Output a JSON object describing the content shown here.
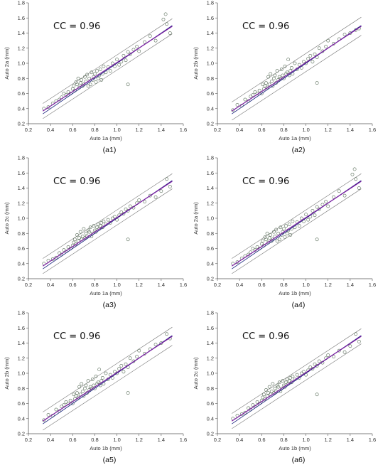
{
  "chart_data": [
    {
      "type": "scatter",
      "xlabel": "Auto 1a (mm)",
      "ylabel": "Auto 2a (mm)",
      "cc_label": "CC = 0.96",
      "caption": "(a1)",
      "xlim": [
        0.2,
        1.6
      ],
      "ylim": [
        0.2,
        1.8
      ],
      "xticks": [
        "0.2",
        "0.4",
        "0.6",
        "0.8",
        "1.0",
        "1.2",
        "1.4",
        "1.6"
      ],
      "yticks": [
        "0.2",
        "0.4",
        "0.6",
        "0.8",
        "1.0",
        "1.2",
        "1.4",
        "1.6",
        "1.8"
      ],
      "fit": {
        "slope": 0.96,
        "intercept": 0.05,
        "band": 0.1
      },
      "series": [
        {
          "x": [
            0.34,
            0.38,
            0.42,
            0.45,
            0.48,
            0.5,
            0.52,
            0.54,
            0.56,
            0.58,
            0.6,
            0.61,
            0.62,
            0.63,
            0.64,
            0.65,
            0.66,
            0.67,
            0.68,
            0.69,
            0.7,
            0.71,
            0.72,
            0.73,
            0.74,
            0.75,
            0.76,
            0.77,
            0.78,
            0.79,
            0.8,
            0.81,
            0.82,
            0.83,
            0.84,
            0.85,
            0.86,
            0.87,
            0.88,
            0.9,
            0.92,
            0.94,
            0.96,
            0.98,
            1.0,
            1.02,
            1.04,
            1.06,
            1.08,
            1.1,
            1.12,
            1.15,
            1.18,
            1.2,
            1.25,
            1.3,
            1.35,
            1.42,
            1.44,
            1.45,
            1.48,
            1.1
          ],
          "y": [
            0.4,
            0.42,
            0.47,
            0.5,
            0.52,
            0.55,
            0.6,
            0.58,
            0.62,
            0.6,
            0.66,
            0.7,
            0.64,
            0.75,
            0.72,
            0.8,
            0.68,
            0.74,
            0.78,
            0.7,
            0.72,
            0.82,
            0.76,
            0.85,
            0.7,
            0.8,
            0.72,
            0.88,
            0.78,
            0.82,
            0.86,
            0.75,
            0.9,
            0.8,
            0.84,
            0.92,
            0.78,
            0.86,
            0.96,
            0.88,
            0.95,
            0.9,
            1.0,
            0.96,
            1.05,
            0.98,
            1.02,
            1.1,
            1.04,
            1.15,
            1.12,
            1.18,
            1.22,
            1.16,
            1.28,
            1.36,
            1.3,
            1.58,
            1.65,
            1.52,
            1.4,
            0.72
          ]
        }
      ]
    },
    {
      "type": "scatter",
      "xlabel": "Auto 1a (mm)",
      "ylabel": "Auto 2b (mm)",
      "cc_label": "CC = 0.96",
      "caption": "(a2)",
      "xlim": [
        0.2,
        1.6
      ],
      "ylim": [
        0.2,
        1.8
      ],
      "xticks": [
        "0.2",
        "0.4",
        "0.6",
        "0.8",
        "1.0",
        "1.2",
        "1.4",
        "1.6"
      ],
      "yticks": [
        "0.2",
        "0.4",
        "0.6",
        "0.8",
        "1.0",
        "1.2",
        "1.4",
        "1.6",
        "1.8"
      ],
      "fit": {
        "slope": 0.96,
        "intercept": 0.05,
        "band": 0.12
      },
      "series": [
        {
          "x": [
            0.34,
            0.38,
            0.42,
            0.45,
            0.48,
            0.5,
            0.52,
            0.54,
            0.56,
            0.58,
            0.6,
            0.61,
            0.62,
            0.63,
            0.64,
            0.65,
            0.66,
            0.67,
            0.68,
            0.69,
            0.7,
            0.71,
            0.72,
            0.73,
            0.74,
            0.75,
            0.76,
            0.77,
            0.78,
            0.79,
            0.8,
            0.81,
            0.82,
            0.83,
            0.84,
            0.85,
            0.86,
            0.87,
            0.88,
            0.9,
            0.92,
            0.94,
            0.96,
            0.98,
            1.0,
            1.02,
            1.04,
            1.06,
            1.08,
            1.1,
            1.12,
            1.15,
            1.18,
            1.2,
            1.25,
            1.3,
            1.35,
            1.4,
            1.45,
            1.48,
            1.1
          ],
          "y": [
            0.38,
            0.45,
            0.44,
            0.52,
            0.5,
            0.56,
            0.58,
            0.62,
            0.6,
            0.64,
            0.6,
            0.72,
            0.66,
            0.7,
            0.74,
            0.68,
            0.82,
            0.72,
            0.86,
            0.76,
            0.7,
            0.8,
            0.84,
            0.74,
            0.9,
            0.78,
            0.82,
            0.8,
            0.92,
            0.84,
            0.8,
            0.96,
            0.86,
            0.88,
            1.05,
            0.84,
            0.9,
            0.94,
            0.86,
            1.0,
            0.92,
            0.98,
            0.94,
            1.02,
            1.0,
            1.06,
            1.1,
            1.02,
            1.12,
            1.08,
            1.2,
            1.16,
            1.22,
            1.3,
            1.26,
            1.32,
            1.38,
            1.4,
            1.44,
            1.46,
            0.74
          ]
        }
      ]
    },
    {
      "type": "scatter",
      "xlabel": "Auto 1a (mm)",
      "ylabel": "Auto 2c (mm)",
      "cc_label": "CC = 0.96",
      "caption": "(a3)",
      "xlim": [
        0.2,
        1.6
      ],
      "ylim": [
        0.2,
        1.8
      ],
      "xticks": [
        "0.2",
        "0.4",
        "0.6",
        "0.8",
        "1.0",
        "1.2",
        "1.4",
        "1.6"
      ],
      "yticks": [
        "0.2",
        "0.4",
        "0.6",
        "0.8",
        "1.0",
        "1.2",
        "1.4",
        "1.6",
        "1.8"
      ],
      "fit": {
        "slope": 0.96,
        "intercept": 0.05,
        "band": 0.1
      },
      "series": [
        {
          "x": [
            0.34,
            0.38,
            0.42,
            0.45,
            0.48,
            0.5,
            0.52,
            0.54,
            0.56,
            0.58,
            0.6,
            0.61,
            0.62,
            0.63,
            0.64,
            0.65,
            0.66,
            0.67,
            0.68,
            0.69,
            0.7,
            0.71,
            0.72,
            0.73,
            0.74,
            0.75,
            0.76,
            0.77,
            0.78,
            0.79,
            0.8,
            0.81,
            0.82,
            0.83,
            0.84,
            0.85,
            0.86,
            0.87,
            0.88,
            0.9,
            0.92,
            0.94,
            0.96,
            0.98,
            1.0,
            1.02,
            1.04,
            1.06,
            1.08,
            1.1,
            1.12,
            1.15,
            1.18,
            1.2,
            1.25,
            1.3,
            1.35,
            1.4,
            1.45,
            1.48,
            1.1
          ],
          "y": [
            0.4,
            0.44,
            0.46,
            0.48,
            0.54,
            0.52,
            0.58,
            0.56,
            0.62,
            0.6,
            0.64,
            0.68,
            0.72,
            0.66,
            0.78,
            0.7,
            0.74,
            0.82,
            0.72,
            0.76,
            0.86,
            0.74,
            0.8,
            0.76,
            0.84,
            0.82,
            0.88,
            0.76,
            0.8,
            0.9,
            0.84,
            0.82,
            0.88,
            0.92,
            0.86,
            0.9,
            0.94,
            0.88,
            0.96,
            0.92,
            0.98,
            0.94,
            1.0,
            1.02,
            0.98,
            1.04,
            1.08,
            1.06,
            1.12,
            1.1,
            1.16,
            1.14,
            1.2,
            1.24,
            1.22,
            1.3,
            1.28,
            1.36,
            1.52,
            1.42,
            0.72
          ]
        }
      ]
    },
    {
      "type": "scatter",
      "xlabel": "Auto 1b (mm)",
      "ylabel": "Auto 2a (mm)",
      "cc_label": "CC = 0.96",
      "caption": "(a4)",
      "xlim": [
        0.2,
        1.6
      ],
      "ylim": [
        0.2,
        1.8
      ],
      "xticks": [
        "0.2",
        "0.4",
        "0.6",
        "0.8",
        "1.0",
        "1.2",
        "1.4",
        "1.6"
      ],
      "yticks": [
        "0.2",
        "0.4",
        "0.6",
        "0.8",
        "1.0",
        "1.2",
        "1.4",
        "1.6",
        "1.8"
      ],
      "fit": {
        "slope": 0.96,
        "intercept": 0.05,
        "band": 0.1
      },
      "series": [
        {
          "x": [
            0.34,
            0.38,
            0.42,
            0.45,
            0.48,
            0.5,
            0.52,
            0.54,
            0.56,
            0.58,
            0.6,
            0.61,
            0.62,
            0.63,
            0.64,
            0.65,
            0.66,
            0.67,
            0.68,
            0.69,
            0.7,
            0.71,
            0.72,
            0.73,
            0.74,
            0.75,
            0.76,
            0.77,
            0.78,
            0.79,
            0.8,
            0.81,
            0.82,
            0.83,
            0.84,
            0.85,
            0.86,
            0.87,
            0.88,
            0.9,
            0.92,
            0.94,
            0.96,
            0.98,
            1.0,
            1.02,
            1.04,
            1.06,
            1.08,
            1.1,
            1.12,
            1.15,
            1.18,
            1.2,
            1.25,
            1.3,
            1.35,
            1.42,
            1.44,
            1.45,
            1.48,
            1.1
          ],
          "y": [
            0.4,
            0.42,
            0.47,
            0.5,
            0.52,
            0.55,
            0.6,
            0.58,
            0.62,
            0.6,
            0.66,
            0.7,
            0.64,
            0.75,
            0.72,
            0.8,
            0.68,
            0.74,
            0.78,
            0.7,
            0.72,
            0.82,
            0.76,
            0.85,
            0.7,
            0.8,
            0.72,
            0.88,
            0.78,
            0.82,
            0.86,
            0.75,
            0.9,
            0.8,
            0.84,
            0.92,
            0.78,
            0.86,
            0.96,
            0.88,
            0.95,
            0.9,
            1.0,
            0.96,
            1.05,
            0.98,
            1.02,
            1.1,
            1.04,
            1.15,
            1.12,
            1.18,
            1.22,
            1.16,
            1.28,
            1.36,
            1.3,
            1.58,
            1.65,
            1.52,
            1.4,
            0.72
          ]
        }
      ]
    },
    {
      "type": "scatter",
      "xlabel": "Auto 1b (mm)",
      "ylabel": "Auto 2b (mm)",
      "cc_label": "CC = 0.96",
      "caption": "(a5)",
      "xlim": [
        0.2,
        1.6
      ],
      "ylim": [
        0.2,
        1.8
      ],
      "xticks": [
        "0.2",
        "0.4",
        "0.6",
        "0.8",
        "1.0",
        "1.2",
        "1.4",
        "1.6"
      ],
      "yticks": [
        "0.2",
        "0.4",
        "0.6",
        "0.8",
        "1.0",
        "1.2",
        "1.4",
        "1.6",
        "1.8"
      ],
      "fit": {
        "slope": 0.96,
        "intercept": 0.05,
        "band": 0.12
      },
      "series": [
        {
          "x": [
            0.34,
            0.38,
            0.42,
            0.45,
            0.48,
            0.5,
            0.52,
            0.54,
            0.56,
            0.58,
            0.6,
            0.61,
            0.62,
            0.63,
            0.64,
            0.65,
            0.66,
            0.67,
            0.68,
            0.69,
            0.7,
            0.71,
            0.72,
            0.73,
            0.74,
            0.75,
            0.76,
            0.77,
            0.78,
            0.79,
            0.8,
            0.81,
            0.82,
            0.83,
            0.84,
            0.85,
            0.86,
            0.87,
            0.88,
            0.9,
            0.92,
            0.94,
            0.96,
            0.98,
            1.0,
            1.02,
            1.04,
            1.06,
            1.08,
            1.1,
            1.12,
            1.15,
            1.18,
            1.2,
            1.25,
            1.3,
            1.35,
            1.4,
            1.45,
            1.48,
            1.1
          ],
          "y": [
            0.38,
            0.45,
            0.44,
            0.52,
            0.5,
            0.56,
            0.58,
            0.62,
            0.6,
            0.64,
            0.6,
            0.72,
            0.66,
            0.7,
            0.74,
            0.68,
            0.82,
            0.72,
            0.86,
            0.76,
            0.7,
            0.8,
            0.84,
            0.74,
            0.9,
            0.78,
            0.82,
            0.8,
            0.92,
            0.84,
            0.8,
            0.96,
            0.86,
            0.88,
            1.05,
            0.84,
            0.9,
            0.94,
            0.86,
            1.0,
            0.92,
            0.98,
            0.94,
            1.02,
            1.0,
            1.06,
            1.1,
            1.02,
            1.12,
            1.08,
            1.2,
            1.16,
            1.22,
            1.3,
            1.26,
            1.32,
            1.38,
            1.4,
            1.52,
            1.46,
            0.74
          ]
        }
      ]
    },
    {
      "type": "scatter",
      "xlabel": "Auto 1b (mm)",
      "ylabel": "Auto 2c (mm)",
      "cc_label": "CC = 0.96",
      "caption": "(a6)",
      "xlim": [
        0.2,
        1.6
      ],
      "ylim": [
        0.2,
        1.8
      ],
      "xticks": [
        "0.2",
        "0.4",
        "0.6",
        "0.8",
        "1.0",
        "1.2",
        "1.4",
        "1.6"
      ],
      "yticks": [
        "0.2",
        "0.4",
        "0.6",
        "0.8",
        "1.0",
        "1.2",
        "1.4",
        "1.6",
        "1.8"
      ],
      "fit": {
        "slope": 0.96,
        "intercept": 0.05,
        "band": 0.1
      },
      "series": [
        {
          "x": [
            0.34,
            0.38,
            0.42,
            0.45,
            0.48,
            0.5,
            0.52,
            0.54,
            0.56,
            0.58,
            0.6,
            0.61,
            0.62,
            0.63,
            0.64,
            0.65,
            0.66,
            0.67,
            0.68,
            0.69,
            0.7,
            0.71,
            0.72,
            0.73,
            0.74,
            0.75,
            0.76,
            0.77,
            0.78,
            0.79,
            0.8,
            0.81,
            0.82,
            0.83,
            0.84,
            0.85,
            0.86,
            0.87,
            0.88,
            0.9,
            0.92,
            0.94,
            0.96,
            0.98,
            1.0,
            1.02,
            1.04,
            1.06,
            1.08,
            1.1,
            1.12,
            1.15,
            1.18,
            1.2,
            1.25,
            1.3,
            1.35,
            1.4,
            1.45,
            1.48,
            1.1
          ],
          "y": [
            0.4,
            0.44,
            0.46,
            0.48,
            0.54,
            0.52,
            0.58,
            0.56,
            0.62,
            0.6,
            0.64,
            0.68,
            0.72,
            0.66,
            0.78,
            0.7,
            0.74,
            0.82,
            0.72,
            0.76,
            0.86,
            0.74,
            0.8,
            0.76,
            0.84,
            0.82,
            0.88,
            0.76,
            0.8,
            0.9,
            0.84,
            0.82,
            0.88,
            0.92,
            0.86,
            0.9,
            0.94,
            0.88,
            0.96,
            0.92,
            0.98,
            0.94,
            1.0,
            1.02,
            0.98,
            1.04,
            1.08,
            1.06,
            1.12,
            1.1,
            1.16,
            1.14,
            1.2,
            1.24,
            1.22,
            1.3,
            1.28,
            1.36,
            1.52,
            1.42,
            0.72
          ]
        }
      ]
    }
  ],
  "colors": {
    "points": "#5a6e5a",
    "fit_line": "#7b1fa2",
    "identity_line": "#1a237e",
    "band_lines": "#7a7a7a",
    "axis": "#555555"
  }
}
